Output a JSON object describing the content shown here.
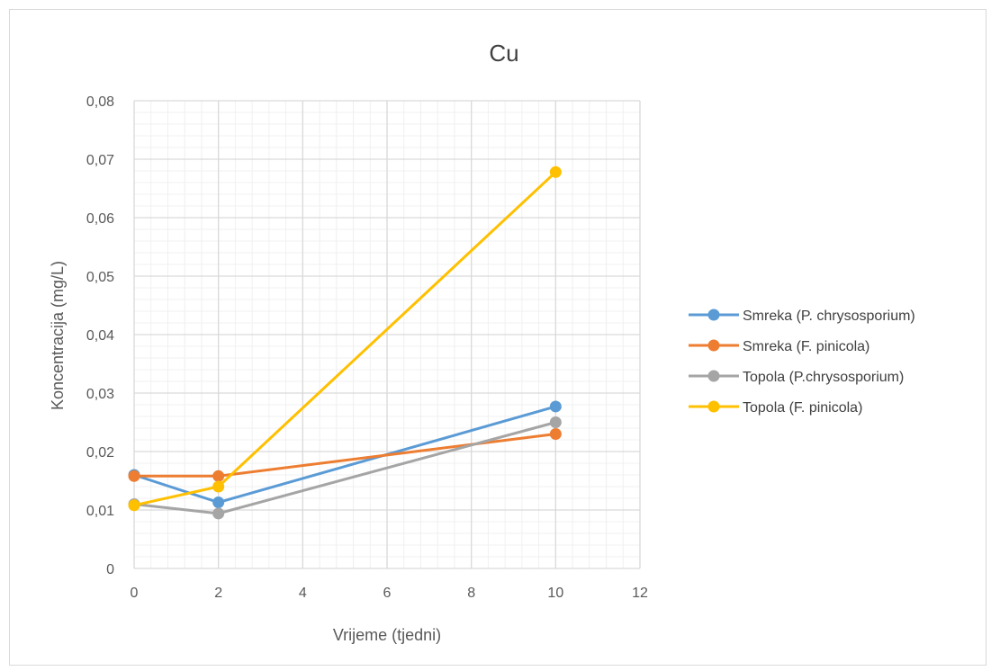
{
  "chart_data": {
    "type": "line",
    "title": "Cu",
    "xlabel": "Vrijeme (tjedni)",
    "ylabel": "Koncentracija (mg/L)",
    "xlim": [
      0,
      12
    ],
    "ylim": [
      0,
      0.08
    ],
    "x_ticks": [
      0,
      2,
      4,
      6,
      8,
      10,
      12
    ],
    "x_tick_labels": [
      "0",
      "2",
      "4",
      "6",
      "8",
      "10",
      "12"
    ],
    "y_ticks": [
      0,
      0.01,
      0.02,
      0.03,
      0.04,
      0.05,
      0.06,
      0.07,
      0.08
    ],
    "y_tick_labels": [
      "0",
      "0,01",
      "0,02",
      "0,03",
      "0,04",
      "0,05",
      "0,06",
      "0,07",
      "0,08"
    ],
    "grid": "major and minor",
    "legend_position": "right",
    "series": [
      {
        "name": "Smreka (P. chrysosporium)",
        "color": "#5b9bd5",
        "x": [
          0,
          2,
          10
        ],
        "y": [
          0.016,
          0.0113,
          0.0277
        ]
      },
      {
        "name": "Smreka (F. pinicola)",
        "color": "#ed7d31",
        "x": [
          0,
          2,
          10
        ],
        "y": [
          0.0158,
          0.0158,
          0.023
        ]
      },
      {
        "name": "Topola (P.chrysosporium)",
        "color": "#a5a5a5",
        "x": [
          0,
          2,
          10
        ],
        "y": [
          0.011,
          0.0094,
          0.025
        ]
      },
      {
        "name": "Topola (F. pinicola)",
        "color": "#ffc000",
        "x": [
          0,
          2,
          10
        ],
        "y": [
          0.0108,
          0.014,
          0.0678
        ]
      }
    ]
  }
}
